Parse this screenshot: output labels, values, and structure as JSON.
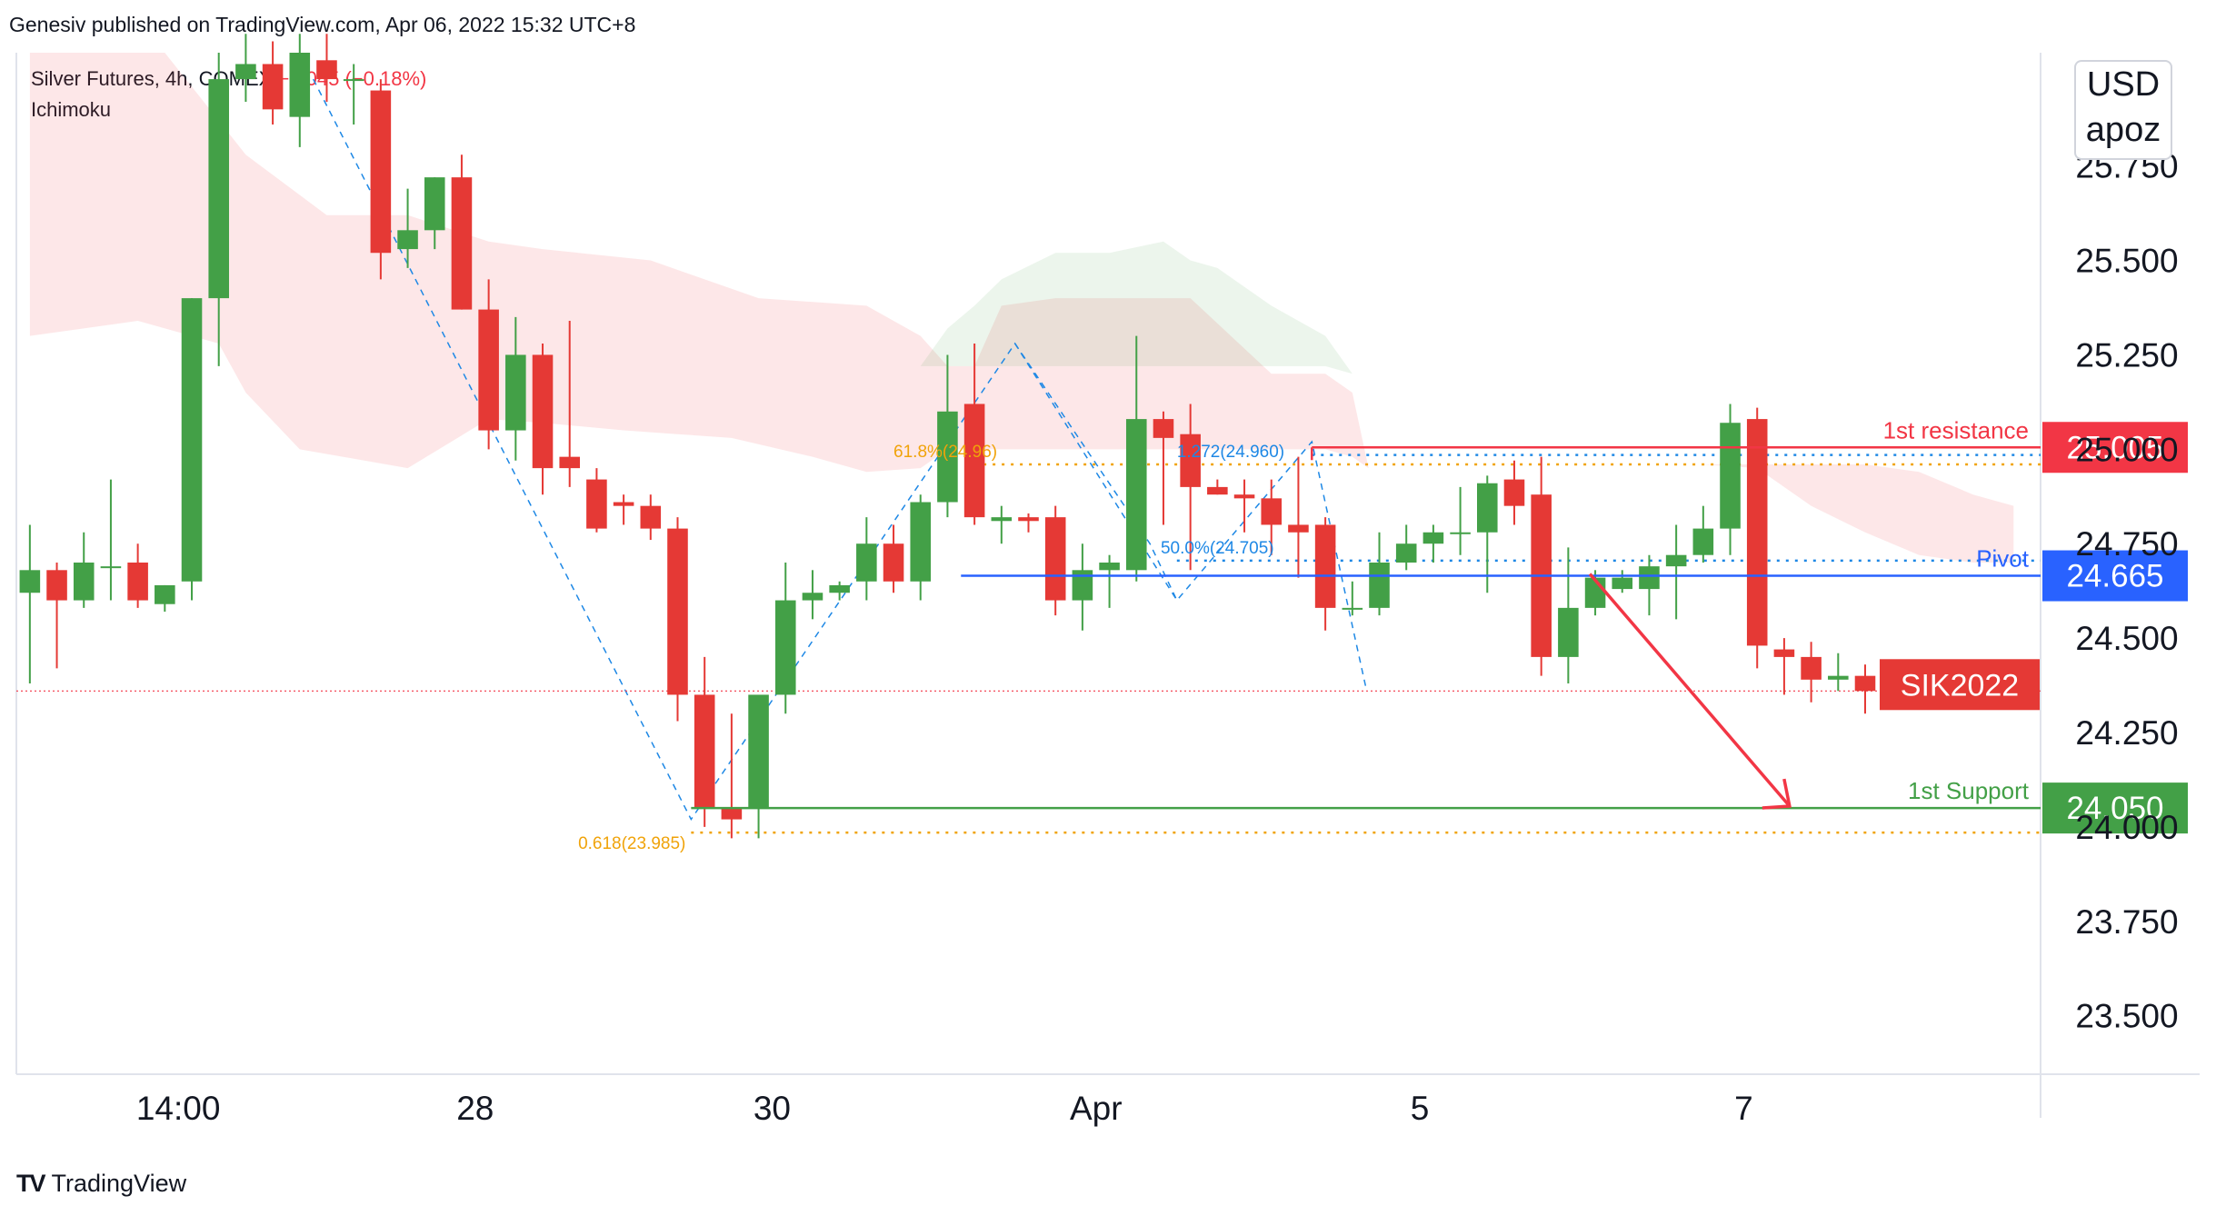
{
  "header": {
    "published": "Genesiv published on TradingView.com, Apr 06, 2022 15:32 UTC+8"
  },
  "legend": {
    "symbol": "Silver Futures, 4h, COMEX",
    "change": "−0.045 (−0.18%)",
    "indicator": "Ichimoku"
  },
  "units": {
    "currency": "USD",
    "unit": "apoz"
  },
  "footer": {
    "brand": "TradingView"
  },
  "colors": {
    "up": "#43a047",
    "down": "#e53935",
    "resistance": "#f23645",
    "pivot": "#2962ff",
    "support": "#43a047",
    "fib": "#f0a30a"
  },
  "chart_data": {
    "type": "candlestick",
    "symbol": "SIK2022",
    "timeframe": "4h",
    "ylim": [
      23.35,
      26.05
    ],
    "y_ticks": [
      "23.500",
      "23.750",
      "24.000",
      "24.250",
      "24.500",
      "24.750",
      "25.000",
      "25.250",
      "25.500",
      "25.750"
    ],
    "x_ticks": [
      {
        "label": "14:00",
        "bar": 5.5
      },
      {
        "label": "28",
        "bar": 16.5
      },
      {
        "label": "30",
        "bar": 27.5
      },
      {
        "label": "Apr",
        "bar": 39.5
      },
      {
        "label": "5",
        "bar": 51.5
      },
      {
        "label": "7",
        "bar": 63.5
      }
    ],
    "bars_total": 75,
    "candles": [
      {
        "o": 24.62,
        "h": 24.8,
        "l": 24.38,
        "c": 24.68
      },
      {
        "o": 24.68,
        "h": 24.7,
        "l": 24.42,
        "c": 24.6
      },
      {
        "o": 24.6,
        "h": 24.78,
        "l": 24.58,
        "c": 24.7
      },
      {
        "o": 24.69,
        "h": 24.92,
        "l": 24.6,
        "c": 24.69
      },
      {
        "o": 24.7,
        "h": 24.75,
        "l": 24.58,
        "c": 24.6
      },
      {
        "o": 24.59,
        "h": 24.64,
        "l": 24.57,
        "c": 24.64
      },
      {
        "o": 24.65,
        "h": 25.4,
        "l": 24.6,
        "c": 25.4
      },
      {
        "o": 25.4,
        "h": 26.05,
        "l": 25.22,
        "c": 25.98
      },
      {
        "o": 25.98,
        "h": 26.1,
        "l": 25.92,
        "c": 26.02
      },
      {
        "o": 26.02,
        "h": 26.08,
        "l": 25.86,
        "c": 25.9
      },
      {
        "o": 25.88,
        "h": 26.1,
        "l": 25.8,
        "c": 26.05
      },
      {
        "o": 26.03,
        "h": 26.1,
        "l": 25.92,
        "c": 25.98
      },
      {
        "o": 25.98,
        "h": 26.02,
        "l": 25.86,
        "c": 25.98
      },
      {
        "o": 25.95,
        "h": 25.98,
        "l": 25.45,
        "c": 25.52
      },
      {
        "o": 25.53,
        "h": 25.69,
        "l": 25.48,
        "c": 25.58
      },
      {
        "o": 25.58,
        "h": 25.72,
        "l": 25.53,
        "c": 25.72
      },
      {
        "o": 25.72,
        "h": 25.78,
        "l": 25.37,
        "c": 25.37
      },
      {
        "o": 25.37,
        "h": 25.45,
        "l": 25.0,
        "c": 25.05
      },
      {
        "o": 25.05,
        "h": 25.35,
        "l": 24.97,
        "c": 25.25
      },
      {
        "o": 25.25,
        "h": 25.28,
        "l": 24.88,
        "c": 24.95
      },
      {
        "o": 24.98,
        "h": 25.34,
        "l": 24.9,
        "c": 24.95
      },
      {
        "o": 24.92,
        "h": 24.95,
        "l": 24.78,
        "c": 24.79
      },
      {
        "o": 24.86,
        "h": 24.88,
        "l": 24.8,
        "c": 24.85
      },
      {
        "o": 24.85,
        "h": 24.88,
        "l": 24.76,
        "c": 24.79
      },
      {
        "o": 24.79,
        "h": 24.82,
        "l": 24.28,
        "c": 24.35
      },
      {
        "o": 24.35,
        "h": 24.45,
        "l": 24.0,
        "c": 24.05
      },
      {
        "o": 24.05,
        "h": 24.3,
        "l": 23.97,
        "c": 24.02
      },
      {
        "o": 24.05,
        "h": 24.35,
        "l": 23.97,
        "c": 24.35
      },
      {
        "o": 24.35,
        "h": 24.7,
        "l": 24.3,
        "c": 24.6
      },
      {
        "o": 24.6,
        "h": 24.68,
        "l": 24.55,
        "c": 24.62
      },
      {
        "o": 24.62,
        "h": 24.65,
        "l": 24.6,
        "c": 24.64
      },
      {
        "o": 24.65,
        "h": 24.82,
        "l": 24.6,
        "c": 24.75
      },
      {
        "o": 24.75,
        "h": 24.8,
        "l": 24.62,
        "c": 24.65
      },
      {
        "o": 24.65,
        "h": 24.88,
        "l": 24.6,
        "c": 24.86
      },
      {
        "o": 24.86,
        "h": 25.25,
        "l": 24.82,
        "c": 25.1
      },
      {
        "o": 25.12,
        "h": 25.28,
        "l": 24.8,
        "c": 24.82
      },
      {
        "o": 24.81,
        "h": 24.85,
        "l": 24.75,
        "c": 24.82
      },
      {
        "o": 24.82,
        "h": 24.83,
        "l": 24.78,
        "c": 24.81
      },
      {
        "o": 24.82,
        "h": 24.85,
        "l": 24.56,
        "c": 24.6
      },
      {
        "o": 24.6,
        "h": 24.75,
        "l": 24.52,
        "c": 24.68
      },
      {
        "o": 24.68,
        "h": 24.72,
        "l": 24.58,
        "c": 24.7
      },
      {
        "o": 24.68,
        "h": 25.3,
        "l": 24.65,
        "c": 25.08
      },
      {
        "o": 25.08,
        "h": 25.1,
        "l": 24.8,
        "c": 25.03
      },
      {
        "o": 25.04,
        "h": 25.12,
        "l": 24.68,
        "c": 24.9
      },
      {
        "o": 24.9,
        "h": 24.92,
        "l": 24.88,
        "c": 24.88
      },
      {
        "o": 24.88,
        "h": 24.92,
        "l": 24.78,
        "c": 24.87
      },
      {
        "o": 24.87,
        "h": 24.92,
        "l": 24.72,
        "c": 24.8
      },
      {
        "o": 24.8,
        "h": 24.98,
        "l": 24.66,
        "c": 24.78
      },
      {
        "o": 24.8,
        "h": 24.82,
        "l": 24.52,
        "c": 24.58
      },
      {
        "o": 24.58,
        "h": 24.65,
        "l": 24.56,
        "c": 24.58
      },
      {
        "o": 24.58,
        "h": 24.78,
        "l": 24.56,
        "c": 24.7
      },
      {
        "o": 24.7,
        "h": 24.8,
        "l": 24.68,
        "c": 24.75
      },
      {
        "o": 24.75,
        "h": 24.8,
        "l": 24.7,
        "c": 24.78
      },
      {
        "o": 24.78,
        "h": 24.9,
        "l": 24.72,
        "c": 24.78
      },
      {
        "o": 24.78,
        "h": 24.93,
        "l": 24.62,
        "c": 24.91
      },
      {
        "o": 24.92,
        "h": 24.97,
        "l": 24.8,
        "c": 24.85
      },
      {
        "o": 24.88,
        "h": 24.98,
        "l": 24.4,
        "c": 24.45
      },
      {
        "o": 24.45,
        "h": 24.74,
        "l": 24.38,
        "c": 24.58
      },
      {
        "o": 24.58,
        "h": 24.68,
        "l": 24.56,
        "c": 24.66
      },
      {
        "o": 24.63,
        "h": 24.68,
        "l": 24.62,
        "c": 24.66
      },
      {
        "o": 24.63,
        "h": 24.72,
        "l": 24.56,
        "c": 24.69
      },
      {
        "o": 24.69,
        "h": 24.8,
        "l": 24.55,
        "c": 24.72
      },
      {
        "o": 24.72,
        "h": 24.85,
        "l": 24.7,
        "c": 24.79
      },
      {
        "o": 24.79,
        "h": 25.12,
        "l": 24.72,
        "c": 25.07
      },
      {
        "o": 25.08,
        "h": 25.11,
        "l": 24.42,
        "c": 24.48
      },
      {
        "o": 24.47,
        "h": 24.5,
        "l": 24.35,
        "c": 24.45
      },
      {
        "o": 24.45,
        "h": 24.49,
        "l": 24.33,
        "c": 24.39
      },
      {
        "o": 24.39,
        "h": 24.46,
        "l": 24.36,
        "c": 24.4
      },
      {
        "o": 24.4,
        "h": 24.43,
        "l": 24.3,
        "c": 24.36
      }
    ],
    "cloud": {
      "red_upper": [
        [
          0,
          26.05
        ],
        [
          5,
          26.05
        ],
        [
          8,
          25.78
        ],
        [
          11,
          25.62
        ],
        [
          14,
          25.62
        ],
        [
          17,
          25.55
        ],
        [
          19,
          25.53
        ],
        [
          23,
          25.5
        ],
        [
          27,
          25.4
        ],
        [
          31,
          25.38
        ],
        [
          33,
          25.3
        ],
        [
          34,
          25.22
        ],
        [
          35,
          25.22
        ],
        [
          36,
          25.38
        ],
        [
          38,
          25.4
        ],
        [
          43,
          25.4
        ],
        [
          46,
          25.2
        ],
        [
          48,
          25.2
        ],
        [
          49,
          25.15
        ],
        [
          49.6,
          24.95
        ],
        [
          50,
          24.96
        ],
        [
          55,
          24.96
        ],
        [
          62,
          24.96
        ],
        [
          68,
          24.96
        ],
        [
          70,
          24.94
        ],
        [
          72,
          24.88
        ],
        [
          73.5,
          24.85
        ]
      ],
      "red_lower": [
        [
          0,
          25.3
        ],
        [
          4,
          25.34
        ],
        [
          7,
          25.28
        ],
        [
          8,
          25.15
        ],
        [
          10,
          25.0
        ],
        [
          14,
          24.95
        ],
        [
          17,
          25.08
        ],
        [
          19,
          25.07
        ],
        [
          22,
          25.05
        ],
        [
          24,
          25.04
        ],
        [
          26,
          25.03
        ],
        [
          29,
          24.98
        ],
        [
          31,
          24.94
        ],
        [
          33,
          24.95
        ],
        [
          34,
          25.0
        ],
        [
          35,
          25.0
        ],
        [
          38,
          25.0
        ],
        [
          48,
          25.0
        ],
        [
          49,
          24.98
        ],
        [
          49.6,
          24.95
        ],
        [
          50,
          24.96
        ],
        [
          55,
          24.96
        ],
        [
          62,
          24.96
        ],
        [
          64,
          24.95
        ],
        [
          66,
          24.85
        ],
        [
          68,
          24.78
        ],
        [
          70,
          24.72
        ],
        [
          72,
          24.7
        ],
        [
          73.5,
          24.7
        ]
      ],
      "green_upper": [
        [
          33,
          25.22
        ],
        [
          34,
          25.32
        ],
        [
          35,
          25.38
        ],
        [
          36,
          25.45
        ],
        [
          38,
          25.52
        ],
        [
          40,
          25.52
        ],
        [
          42,
          25.55
        ],
        [
          43,
          25.5
        ],
        [
          44,
          25.48
        ],
        [
          46,
          25.38
        ],
        [
          48,
          25.3
        ],
        [
          49,
          25.2
        ]
      ],
      "green_lower": [
        [
          33,
          25.22
        ],
        [
          34,
          25.22
        ],
        [
          35,
          25.22
        ],
        [
          38,
          25.22
        ],
        [
          42,
          25.22
        ],
        [
          46,
          25.22
        ],
        [
          48,
          25.22
        ],
        [
          49,
          25.2
        ]
      ]
    },
    "levels": [
      {
        "name": "1st resistance",
        "value": 25.005,
        "label": "25.005",
        "text": "1st resistance",
        "color": "#f23645",
        "from_bar": 47.5
      },
      {
        "name": "Pivot",
        "value": 24.665,
        "label": "24.665",
        "text": "Pivot",
        "color": "#2962ff",
        "from_bar": 34.5
      },
      {
        "name": "1st Support",
        "value": 24.05,
        "label": "24.050",
        "text": "1st Support",
        "color": "#43a047",
        "from_bar": 24.5
      }
    ],
    "symbol_tag": {
      "text": "SIK2022",
      "value": 24.36
    },
    "fib_labels": [
      {
        "text": "0.618(23.985)",
        "value": 23.985,
        "bar": 24.3,
        "color": "#f0a30a"
      },
      {
        "text": "61.8%(24.96)",
        "value": 24.96,
        "bar": 32.0,
        "color": "#f0a30a"
      },
      {
        "text": "1.272(24.960)",
        "value": 24.96,
        "bar": 42.5,
        "color": "#1e88e5"
      },
      {
        "text": "50.0%(24.705)",
        "value": 24.705,
        "bar": 41.9,
        "color": "#1e88e5"
      }
    ]
  }
}
